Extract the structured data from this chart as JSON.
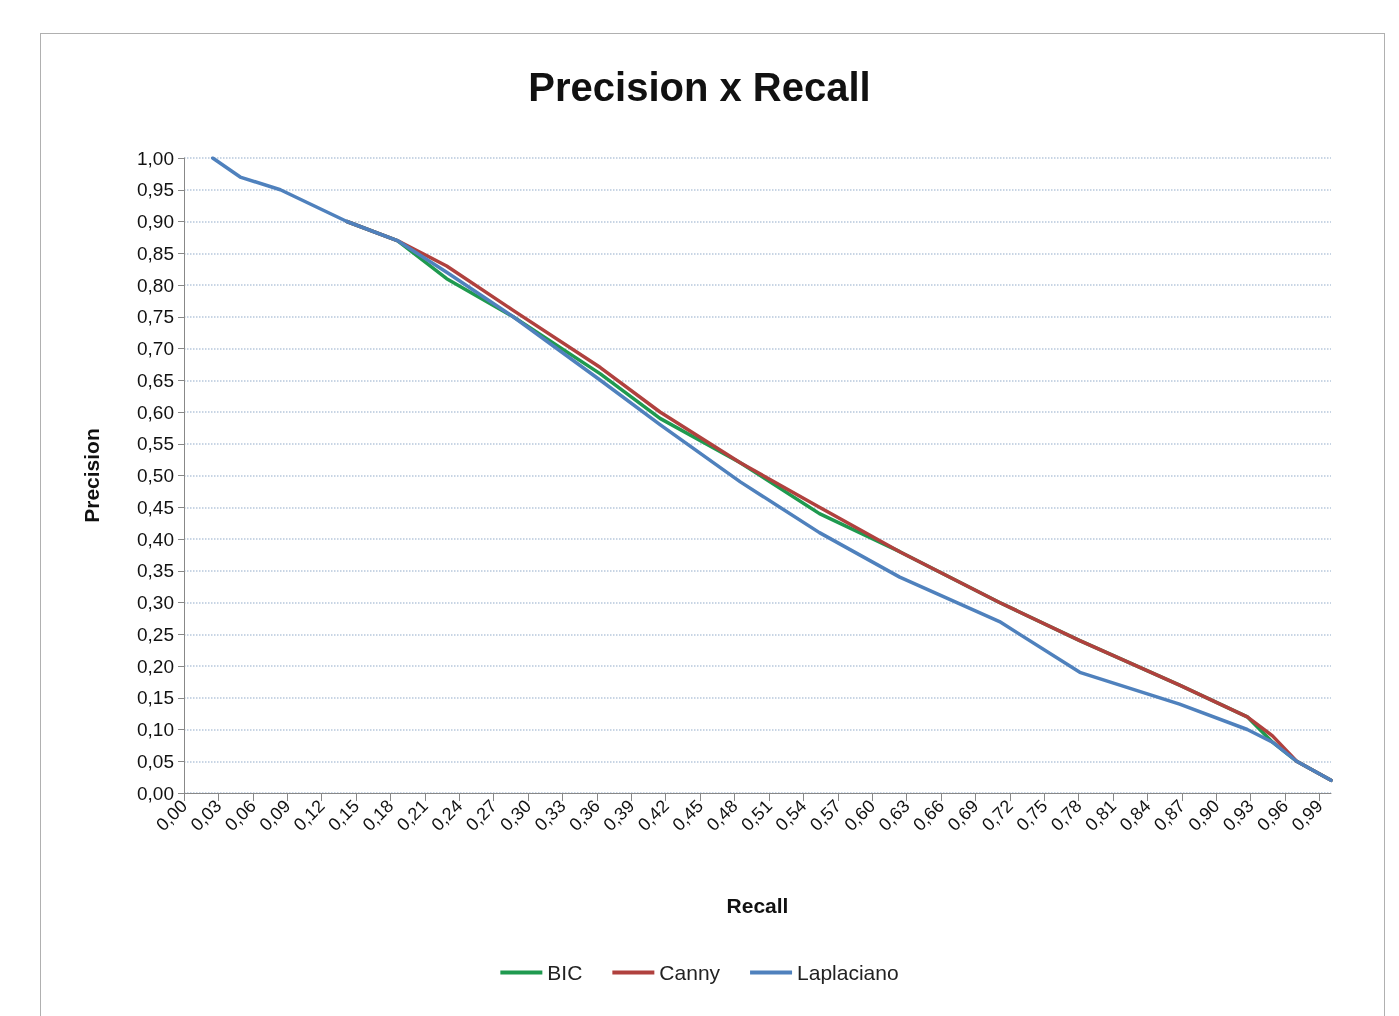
{
  "chart_data": {
    "type": "line",
    "title": "Precision x Recall",
    "xlabel": "Recall",
    "ylabel": "Precision",
    "x": [
      0.025,
      0.049,
      0.084,
      0.142,
      0.186,
      0.229,
      0.287,
      0.363,
      0.415,
      0.485,
      0.554,
      0.624,
      0.711,
      0.781,
      0.868,
      0.927,
      0.949,
      0.97,
      1.0
    ],
    "series": [
      {
        "name": "BIC",
        "color": "#1f9a4f",
        "x": [
          0.142,
          0.186,
          0.229,
          0.287,
          0.363,
          0.415,
          0.485,
          0.554,
          0.624,
          0.711,
          0.781,
          0.868,
          0.927,
          0.949,
          0.97,
          1.0
        ],
        "values": [
          0.9,
          0.87,
          0.81,
          0.75,
          0.66,
          0.59,
          0.52,
          0.44,
          0.38,
          0.3,
          0.24,
          0.17,
          0.12,
          0.08,
          0.05,
          0.02
        ]
      },
      {
        "name": "Canny",
        "color": "#b0413e",
        "x": [
          0.142,
          0.186,
          0.229,
          0.287,
          0.363,
          0.415,
          0.485,
          0.554,
          0.624,
          0.711,
          0.781,
          0.868,
          0.927,
          0.949,
          0.97,
          1.0
        ],
        "values": [
          0.9,
          0.87,
          0.83,
          0.76,
          0.67,
          0.6,
          0.52,
          0.45,
          0.38,
          0.3,
          0.24,
          0.17,
          0.12,
          0.09,
          0.05,
          0.02
        ]
      },
      {
        "name": "Laplaciano",
        "color": "#4f81bd",
        "values": [
          1.0,
          0.97,
          0.95,
          0.9,
          0.87,
          0.82,
          0.75,
          0.65,
          0.58,
          0.49,
          0.41,
          0.34,
          0.27,
          0.19,
          0.14,
          0.1,
          0.08,
          0.05,
          0.02
        ]
      }
    ],
    "xlim": [
      0,
      1
    ],
    "xticks": [
      {
        "value": 0,
        "label": "0,00"
      },
      {
        "value": 0.03,
        "label": "0,03"
      },
      {
        "value": 0.06,
        "label": "0,06"
      },
      {
        "value": 0.09,
        "label": "0,09"
      },
      {
        "value": 0.12,
        "label": "0,12"
      },
      {
        "value": 0.15,
        "label": "0,15"
      },
      {
        "value": 0.18,
        "label": "0,18"
      },
      {
        "value": 0.21,
        "label": "0,21"
      },
      {
        "value": 0.24,
        "label": "0,24"
      },
      {
        "value": 0.27,
        "label": "0,27"
      },
      {
        "value": 0.3,
        "label": "0,30"
      },
      {
        "value": 0.33,
        "label": "0,33"
      },
      {
        "value": 0.36,
        "label": "0,36"
      },
      {
        "value": 0.39,
        "label": "0,39"
      },
      {
        "value": 0.42,
        "label": "0,42"
      },
      {
        "value": 0.45,
        "label": "0,45"
      },
      {
        "value": 0.48,
        "label": "0,48"
      },
      {
        "value": 0.51,
        "label": "0,51"
      },
      {
        "value": 0.54,
        "label": "0,54"
      },
      {
        "value": 0.57,
        "label": "0,57"
      },
      {
        "value": 0.6,
        "label": "0,60"
      },
      {
        "value": 0.63,
        "label": "0,63"
      },
      {
        "value": 0.66,
        "label": "0,66"
      },
      {
        "value": 0.69,
        "label": "0,69"
      },
      {
        "value": 0.72,
        "label": "0,72"
      },
      {
        "value": 0.75,
        "label": "0,75"
      },
      {
        "value": 0.78,
        "label": "0,78"
      },
      {
        "value": 0.81,
        "label": "0,81"
      },
      {
        "value": 0.84,
        "label": "0,84"
      },
      {
        "value": 0.87,
        "label": "0,87"
      },
      {
        "value": 0.9,
        "label": "0,90"
      },
      {
        "value": 0.93,
        "label": "0,93"
      },
      {
        "value": 0.96,
        "label": "0,96"
      },
      {
        "value": 0.99,
        "label": "0,99"
      }
    ],
    "ylim": [
      0,
      1
    ],
    "yticks": [
      {
        "value": 0,
        "label": "0,00"
      },
      {
        "value": 0.05,
        "label": "0,05"
      },
      {
        "value": 0.1,
        "label": "0,10"
      },
      {
        "value": 0.15,
        "label": "0,15"
      },
      {
        "value": 0.2,
        "label": "0,20"
      },
      {
        "value": 0.25,
        "label": "0,25"
      },
      {
        "value": 0.3,
        "label": "0,30"
      },
      {
        "value": 0.35,
        "label": "0,35"
      },
      {
        "value": 0.4,
        "label": "0,40"
      },
      {
        "value": 0.45,
        "label": "0,45"
      },
      {
        "value": 0.5,
        "label": "0,50"
      },
      {
        "value": 0.55,
        "label": "0,55"
      },
      {
        "value": 0.6,
        "label": "0,60"
      },
      {
        "value": 0.65,
        "label": "0,65"
      },
      {
        "value": 0.7,
        "label": "0,70"
      },
      {
        "value": 0.75,
        "label": "0,75"
      },
      {
        "value": 0.8,
        "label": "0,80"
      },
      {
        "value": 0.85,
        "label": "0,85"
      },
      {
        "value": 0.9,
        "label": "0,90"
      },
      {
        "value": 0.95,
        "label": "0,95"
      },
      {
        "value": 1,
        "label": "1,00"
      }
    ],
    "grid": "y",
    "legend": "bottom",
    "marker": "none",
    "line_style": "solid"
  }
}
